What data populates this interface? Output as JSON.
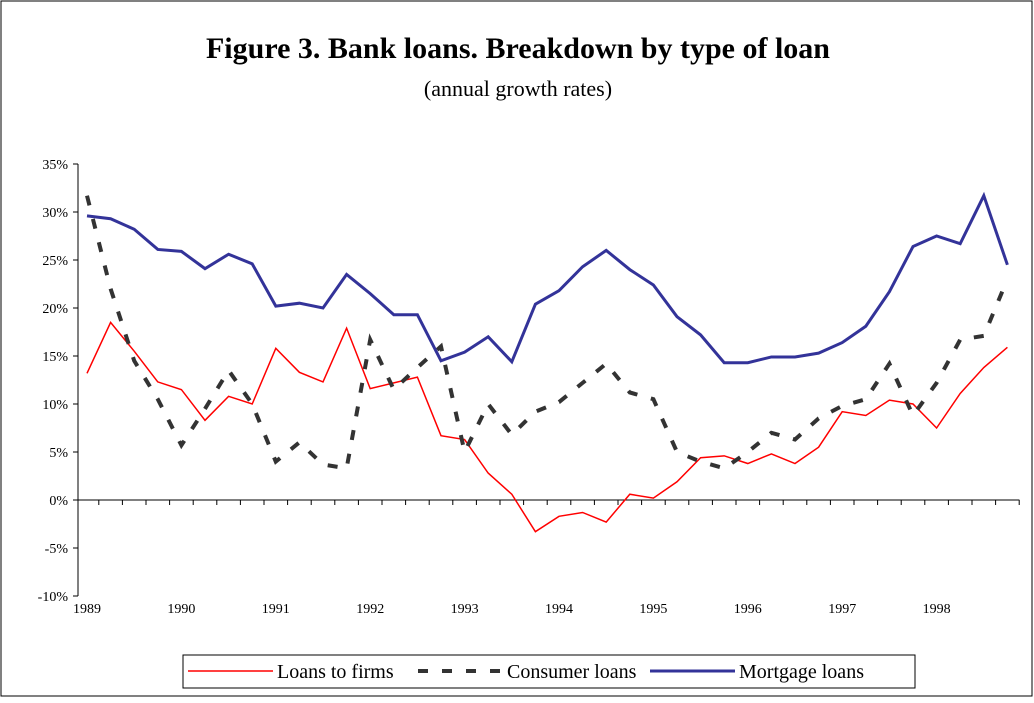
{
  "chart_data": {
    "type": "line",
    "title": "Figure 3. Bank loans. Breakdown by type of loan",
    "subtitle": "(annual growth rates)",
    "categories": [
      "1989",
      null,
      null,
      null,
      "1990",
      null,
      null,
      null,
      "1991",
      null,
      null,
      null,
      "1992",
      null,
      null,
      null,
      "1993",
      null,
      null,
      null,
      "1994",
      null,
      null,
      null,
      "1995",
      null,
      null,
      null,
      "1996",
      null,
      null,
      null,
      "1997",
      null,
      null,
      null,
      "1998",
      null,
      null,
      null
    ],
    "ylim": [
      -10,
      35
    ],
    "yticks": [
      {
        "value": -10,
        "label": "-10%"
      },
      {
        "value": -5,
        "label": "-5%"
      },
      {
        "value": 0,
        "label": "0%"
      },
      {
        "value": 5,
        "label": "5%"
      },
      {
        "value": 10,
        "label": "10%"
      },
      {
        "value": 15,
        "label": "15%"
      },
      {
        "value": 20,
        "label": "20%"
      },
      {
        "value": 25,
        "label": "25%"
      },
      {
        "value": 30,
        "label": "30%"
      },
      {
        "value": 35,
        "label": "35%"
      }
    ],
    "legend": "bottom",
    "series": [
      {
        "name": "Loans to firms",
        "color": "#ff0000",
        "style": "solid",
        "width": 1.5,
        "values": [
          13.2,
          18.5,
          15.5,
          12.3,
          11.5,
          8.3,
          10.8,
          10.0,
          15.8,
          13.3,
          12.3,
          17.9,
          11.6,
          12.2,
          12.8,
          6.7,
          6.3,
          2.8,
          0.6,
          -3.3,
          -1.7,
          -1.3,
          -2.3,
          0.6,
          0.2,
          1.9,
          4.4,
          4.6,
          3.8,
          4.8,
          3.8,
          5.5,
          9.2,
          8.8,
          10.4,
          10.0,
          7.5,
          11.1,
          13.8,
          15.9
        ]
      },
      {
        "name": "Consumer loans",
        "color": "#333333",
        "style": "dashed",
        "width": 4,
        "values": [
          31.7,
          22.0,
          14.5,
          10.5,
          5.7,
          9.5,
          13.5,
          10.0,
          4.0,
          6.0,
          3.7,
          3.3,
          16.7,
          11.5,
          13.8,
          16.0,
          5.0,
          10.0,
          6.8,
          9.2,
          10.2,
          12.2,
          14.2,
          11.2,
          10.5,
          5.0,
          4.0,
          3.3,
          5.0,
          7.0,
          6.3,
          8.5,
          9.8,
          10.5,
          14.2,
          8.8,
          12.2,
          16.7,
          17.1,
          23.0
        ]
      },
      {
        "name": "Mortgage loans",
        "color": "#333399",
        "style": "solid",
        "width": 3,
        "values": [
          29.6,
          29.3,
          28.2,
          26.1,
          25.9,
          24.1,
          25.6,
          24.6,
          20.2,
          20.5,
          20.0,
          23.5,
          21.5,
          19.3,
          19.3,
          14.5,
          15.4,
          17.0,
          14.4,
          20.4,
          21.8,
          24.3,
          26.0,
          24.0,
          22.4,
          19.1,
          17.2,
          14.3,
          14.3,
          14.9,
          14.9,
          15.3,
          16.4,
          18.1,
          21.7,
          26.4,
          27.5,
          26.7,
          31.7,
          24.5
        ]
      }
    ]
  }
}
